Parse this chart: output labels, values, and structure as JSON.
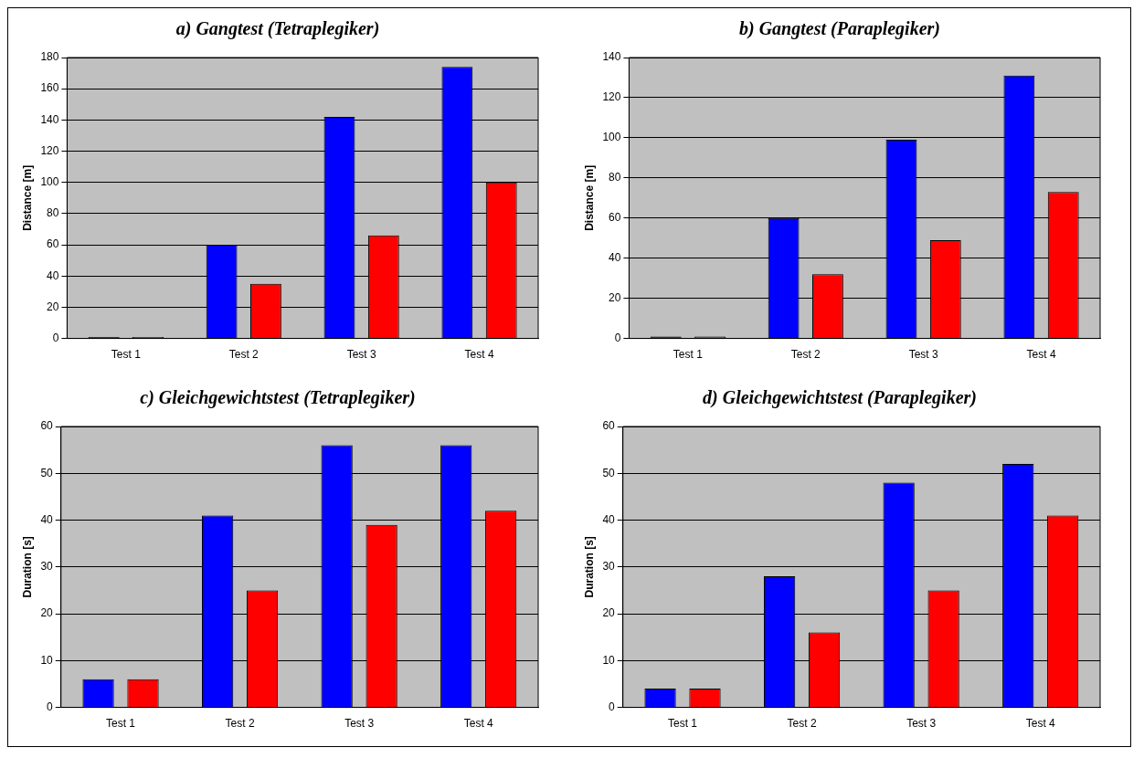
{
  "chart_data": [
    {
      "type": "bar",
      "title": "a) Gangtest (Tetraplegiker)",
      "ylabel": "Distance [m]",
      "categories": [
        "Test 1",
        "Test 2",
        "Test 3",
        "Test 4"
      ],
      "series": [
        {
          "color": "#0000ff",
          "values": [
            1,
            60,
            142,
            174
          ]
        },
        {
          "color": "#ff0000",
          "values": [
            1,
            35,
            66,
            100
          ]
        }
      ],
      "ylim": [
        0,
        180
      ],
      "yticks": [
        0,
        20,
        40,
        60,
        80,
        100,
        120,
        140,
        160,
        180
      ],
      "grid": "y"
    },
    {
      "type": "bar",
      "title": "b) Gangtest (Paraplegiker)",
      "ylabel": "Distance [m]",
      "categories": [
        "Test 1",
        "Test 2",
        "Test 3",
        "Test 4"
      ],
      "series": [
        {
          "color": "#0000ff",
          "values": [
            1,
            60,
            99,
            131
          ]
        },
        {
          "color": "#ff0000",
          "values": [
            1,
            32,
            49,
            73
          ]
        }
      ],
      "ylim": [
        0,
        140
      ],
      "yticks": [
        0,
        20,
        40,
        60,
        80,
        100,
        120,
        140
      ],
      "grid": "y"
    },
    {
      "type": "bar",
      "title": "c) Gleichgewichtstest (Tetraplegiker)",
      "ylabel": "Duration [s]",
      "categories": [
        "Test 1",
        "Test 2",
        "Test 3",
        "Test 4"
      ],
      "series": [
        {
          "color": "#0000ff",
          "values": [
            6,
            41,
            56,
            56
          ]
        },
        {
          "color": "#ff0000",
          "values": [
            6,
            25,
            39,
            42
          ]
        }
      ],
      "ylim": [
        0,
        60
      ],
      "yticks": [
        0,
        10,
        20,
        30,
        40,
        50,
        60
      ],
      "grid": "y"
    },
    {
      "type": "bar",
      "title": "d) Gleichgewichtstest (Paraplegiker)",
      "ylabel": "Duration [s]",
      "categories": [
        "Test 1",
        "Test 2",
        "Test 3",
        "Test 4"
      ],
      "series": [
        {
          "color": "#0000ff",
          "values": [
            4,
            28,
            48,
            52
          ]
        },
        {
          "color": "#ff0000",
          "values": [
            4,
            16,
            25,
            41
          ]
        }
      ],
      "ylim": [
        0,
        60
      ],
      "yticks": [
        0,
        10,
        20,
        30,
        40,
        50,
        60
      ],
      "grid": "y"
    }
  ]
}
